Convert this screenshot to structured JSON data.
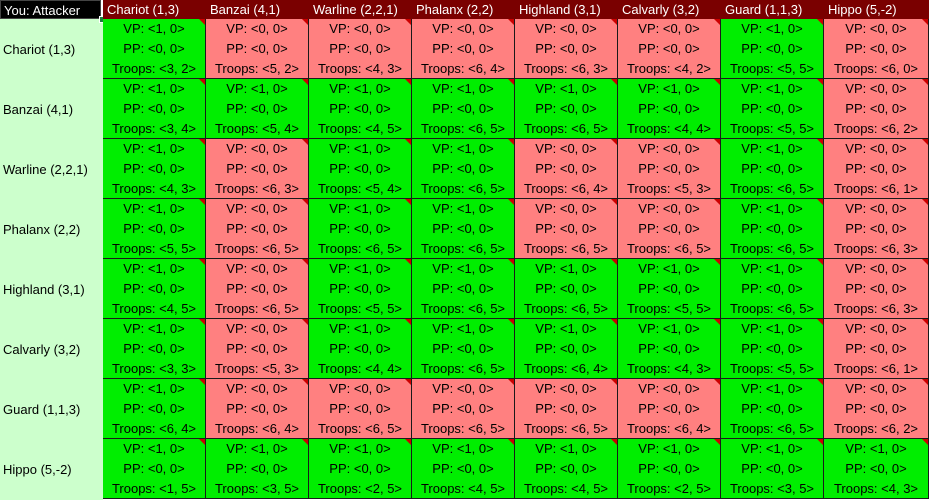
{
  "corner_label": "You: Attacker",
  "colors": {
    "win": "#00ee00",
    "lose": "#ff8080",
    "header": "#7a0000",
    "row_header": "#ccffcc"
  },
  "columns": [
    "Chariot (1,3)",
    "Banzai (4,1)",
    "Warline (2,2,1)",
    "Phalanx (2,2)",
    "Highland (3,1)",
    "Calvarly (3,2)",
    "Guard (1,1,3)",
    "Hippo (5,-2)"
  ],
  "rows": [
    {
      "label": "Chariot (1,3)",
      "cells": [
        {
          "vp": "VP: <1, 0>",
          "pp": "PP: <0, 0>",
          "troops": "Troops: <3, 2>",
          "result": "win"
        },
        {
          "vp": "VP: <0, 0>",
          "pp": "PP: <0, 0>",
          "troops": "Troops: <5, 2>",
          "result": "lose"
        },
        {
          "vp": "VP: <0, 0>",
          "pp": "PP: <0, 0>",
          "troops": "Troops: <4, 3>",
          "result": "lose"
        },
        {
          "vp": "VP: <0, 0>",
          "pp": "PP: <0, 0>",
          "troops": "Troops: <6, 4>",
          "result": "lose"
        },
        {
          "vp": "VP: <0, 0>",
          "pp": "PP: <0, 0>",
          "troops": "Troops: <6, 3>",
          "result": "lose"
        },
        {
          "vp": "VP: <0, 0>",
          "pp": "PP: <0, 0>",
          "troops": "Troops: <4, 2>",
          "result": "lose"
        },
        {
          "vp": "VP: <1, 0>",
          "pp": "PP: <0, 0>",
          "troops": "Troops: <5, 5>",
          "result": "win"
        },
        {
          "vp": "VP: <0, 0>",
          "pp": "PP: <0, 0>",
          "troops": "Troops: <6, 0>",
          "result": "lose"
        }
      ]
    },
    {
      "label": "Banzai (4,1)",
      "cells": [
        {
          "vp": "VP: <1, 0>",
          "pp": "PP: <0, 0>",
          "troops": "Troops: <3, 4>",
          "result": "win"
        },
        {
          "vp": "VP: <1, 0>",
          "pp": "PP: <0, 0>",
          "troops": "Troops: <5, 4>",
          "result": "win"
        },
        {
          "vp": "VP: <1, 0>",
          "pp": "PP: <0, 0>",
          "troops": "Troops: <4, 5>",
          "result": "win"
        },
        {
          "vp": "VP: <1, 0>",
          "pp": "PP: <0, 0>",
          "troops": "Troops: <6, 5>",
          "result": "win"
        },
        {
          "vp": "VP: <1, 0>",
          "pp": "PP: <0, 0>",
          "troops": "Troops: <6, 5>",
          "result": "win"
        },
        {
          "vp": "VP: <1, 0>",
          "pp": "PP: <0, 0>",
          "troops": "Troops: <4, 4>",
          "result": "win"
        },
        {
          "vp": "VP: <1, 0>",
          "pp": "PP: <0, 0>",
          "troops": "Troops: <5, 5>",
          "result": "win"
        },
        {
          "vp": "VP: <0, 0>",
          "pp": "PP: <0, 0>",
          "troops": "Troops: <6, 2>",
          "result": "lose"
        }
      ]
    },
    {
      "label": "Warline (2,2,1)",
      "cells": [
        {
          "vp": "VP: <1, 0>",
          "pp": "PP: <0, 0>",
          "troops": "Troops: <4, 3>",
          "result": "win"
        },
        {
          "vp": "VP: <0, 0>",
          "pp": "PP: <0, 0>",
          "troops": "Troops: <6, 3>",
          "result": "lose"
        },
        {
          "vp": "VP: <1, 0>",
          "pp": "PP: <0, 0>",
          "troops": "Troops: <5, 4>",
          "result": "win"
        },
        {
          "vp": "VP: <1, 0>",
          "pp": "PP: <0, 0>",
          "troops": "Troops: <6, 5>",
          "result": "win"
        },
        {
          "vp": "VP: <0, 0>",
          "pp": "PP: <0, 0>",
          "troops": "Troops: <6, 4>",
          "result": "lose"
        },
        {
          "vp": "VP: <0, 0>",
          "pp": "PP: <0, 0>",
          "troops": "Troops: <5, 3>",
          "result": "lose"
        },
        {
          "vp": "VP: <1, 0>",
          "pp": "PP: <0, 0>",
          "troops": "Troops: <6, 5>",
          "result": "win"
        },
        {
          "vp": "VP: <0, 0>",
          "pp": "PP: <0, 0>",
          "troops": "Troops: <6, 1>",
          "result": "lose"
        }
      ]
    },
    {
      "label": "Phalanx (2,2)",
      "cells": [
        {
          "vp": "VP: <1, 0>",
          "pp": "PP: <0, 0>",
          "troops": "Troops: <5, 5>",
          "result": "win"
        },
        {
          "vp": "VP: <0, 0>",
          "pp": "PP: <0, 0>",
          "troops": "Troops: <6, 5>",
          "result": "lose"
        },
        {
          "vp": "VP: <1, 0>",
          "pp": "PP: <0, 0>",
          "troops": "Troops: <6, 5>",
          "result": "win"
        },
        {
          "vp": "VP: <1, 0>",
          "pp": "PP: <0, 0>",
          "troops": "Troops: <6, 5>",
          "result": "win"
        },
        {
          "vp": "VP: <0, 0>",
          "pp": "PP: <0, 0>",
          "troops": "Troops: <6, 5>",
          "result": "lose"
        },
        {
          "vp": "VP: <0, 0>",
          "pp": "PP: <0, 0>",
          "troops": "Troops: <6, 5>",
          "result": "lose"
        },
        {
          "vp": "VP: <1, 0>",
          "pp": "PP: <0, 0>",
          "troops": "Troops: <6, 5>",
          "result": "win"
        },
        {
          "vp": "VP: <0, 0>",
          "pp": "PP: <0, 0>",
          "troops": "Troops: <6, 3>",
          "result": "lose"
        }
      ]
    },
    {
      "label": "Highland (3,1)",
      "cells": [
        {
          "vp": "VP: <1, 0>",
          "pp": "PP: <0, 0>",
          "troops": "Troops: <4, 5>",
          "result": "win"
        },
        {
          "vp": "VP: <0, 0>",
          "pp": "PP: <0, 0>",
          "troops": "Troops: <6, 5>",
          "result": "lose"
        },
        {
          "vp": "VP: <1, 0>",
          "pp": "PP: <0, 0>",
          "troops": "Troops: <5, 5>",
          "result": "win"
        },
        {
          "vp": "VP: <1, 0>",
          "pp": "PP: <0, 0>",
          "troops": "Troops: <6, 5>",
          "result": "win"
        },
        {
          "vp": "VP: <1, 0>",
          "pp": "PP: <0, 0>",
          "troops": "Troops: <6, 5>",
          "result": "win"
        },
        {
          "vp": "VP: <1, 0>",
          "pp": "PP: <0, 0>",
          "troops": "Troops: <5, 5>",
          "result": "win"
        },
        {
          "vp": "VP: <1, 0>",
          "pp": "PP: <0, 0>",
          "troops": "Troops: <6, 5>",
          "result": "win"
        },
        {
          "vp": "VP: <0, 0>",
          "pp": "PP: <0, 0>",
          "troops": "Troops: <6, 3>",
          "result": "lose"
        }
      ]
    },
    {
      "label": "Calvarly (3,2)",
      "cells": [
        {
          "vp": "VP: <1, 0>",
          "pp": "PP: <0, 0>",
          "troops": "Troops: <3, 3>",
          "result": "win"
        },
        {
          "vp": "VP: <0, 0>",
          "pp": "PP: <0, 0>",
          "troops": "Troops: <5, 3>",
          "result": "lose"
        },
        {
          "vp": "VP: <1, 0>",
          "pp": "PP: <0, 0>",
          "troops": "Troops: <4, 4>",
          "result": "win"
        },
        {
          "vp": "VP: <1, 0>",
          "pp": "PP: <0, 0>",
          "troops": "Troops: <6, 5>",
          "result": "win"
        },
        {
          "vp": "VP: <1, 0>",
          "pp": "PP: <0, 0>",
          "troops": "Troops: <6, 4>",
          "result": "win"
        },
        {
          "vp": "VP: <1, 0>",
          "pp": "PP: <0, 0>",
          "troops": "Troops: <4, 3>",
          "result": "win"
        },
        {
          "vp": "VP: <1, 0>",
          "pp": "PP: <0, 0>",
          "troops": "Troops: <5, 5>",
          "result": "win"
        },
        {
          "vp": "VP: <0, 0>",
          "pp": "PP: <0, 0>",
          "troops": "Troops: <6, 1>",
          "result": "lose"
        }
      ]
    },
    {
      "label": "Guard (1,1,3)",
      "cells": [
        {
          "vp": "VP: <1, 0>",
          "pp": "PP: <0, 0>",
          "troops": "Troops: <6, 4>",
          "result": "win"
        },
        {
          "vp": "VP: <0, 0>",
          "pp": "PP: <0, 0>",
          "troops": "Troops: <6, 4>",
          "result": "lose"
        },
        {
          "vp": "VP: <0, 0>",
          "pp": "PP: <0, 0>",
          "troops": "Troops: <6, 5>",
          "result": "lose"
        },
        {
          "vp": "VP: <0, 0>",
          "pp": "PP: <0, 0>",
          "troops": "Troops: <6, 5>",
          "result": "lose"
        },
        {
          "vp": "VP: <0, 0>",
          "pp": "PP: <0, 0>",
          "troops": "Troops: <6, 5>",
          "result": "lose"
        },
        {
          "vp": "VP: <0, 0>",
          "pp": "PP: <0, 0>",
          "troops": "Troops: <6, 4>",
          "result": "lose"
        },
        {
          "vp": "VP: <1, 0>",
          "pp": "PP: <0, 0>",
          "troops": "Troops: <6, 5>",
          "result": "win"
        },
        {
          "vp": "VP: <0, 0>",
          "pp": "PP: <0, 0>",
          "troops": "Troops: <6, 2>",
          "result": "lose"
        }
      ]
    },
    {
      "label": "Hippo (5,-2)",
      "cells": [
        {
          "vp": "VP: <1, 0>",
          "pp": "PP: <0, 0>",
          "troops": "Troops: <1, 5>",
          "result": "win"
        },
        {
          "vp": "VP: <1, 0>",
          "pp": "PP: <0, 0>",
          "troops": "Troops: <3, 5>",
          "result": "win"
        },
        {
          "vp": "VP: <1, 0>",
          "pp": "PP: <0, 0>",
          "troops": "Troops: <2, 5>",
          "result": "win"
        },
        {
          "vp": "VP: <1, 0>",
          "pp": "PP: <0, 0>",
          "troops": "Troops: <4, 5>",
          "result": "win"
        },
        {
          "vp": "VP: <1, 0>",
          "pp": "PP: <0, 0>",
          "troops": "Troops: <4, 5>",
          "result": "win"
        },
        {
          "vp": "VP: <1, 0>",
          "pp": "PP: <0, 0>",
          "troops": "Troops: <2, 5>",
          "result": "win"
        },
        {
          "vp": "VP: <1, 0>",
          "pp": "PP: <0, 0>",
          "troops": "Troops: <3, 5>",
          "result": "win"
        },
        {
          "vp": "VP: <1, 0>",
          "pp": "PP: <0, 0>",
          "troops": "Troops: <4, 3>",
          "result": "win"
        }
      ]
    }
  ]
}
